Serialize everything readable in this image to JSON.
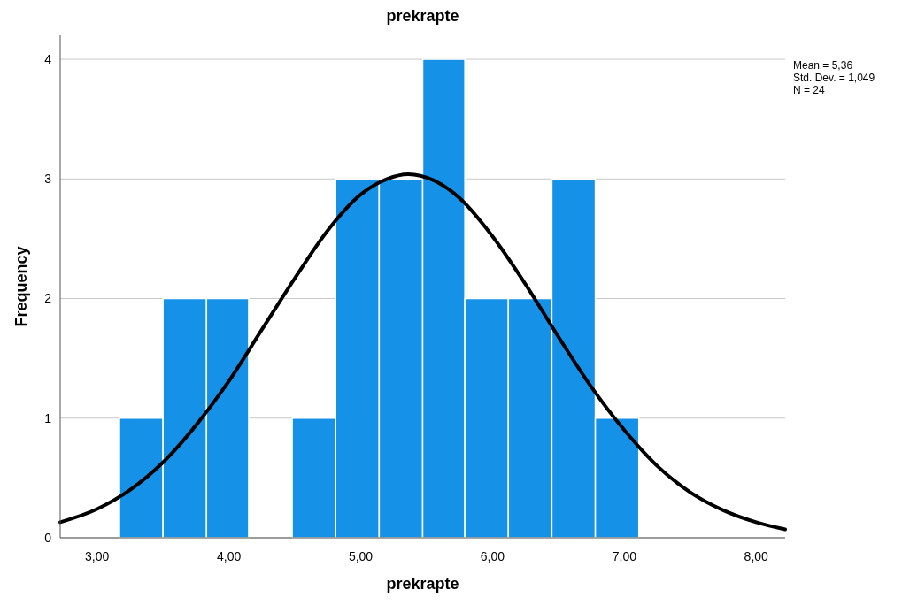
{
  "chart_data": {
    "type": "histogram",
    "title": "prekrapte",
    "xlabel": "prekrapte",
    "ylabel": "Frequency",
    "annotations": [
      "Mean = 5,36",
      "Std. Dev. = 1,049",
      "N = 24"
    ],
    "xlim": [
      2.72,
      8.22
    ],
    "ylim": [
      0,
      4.2
    ],
    "xticks": [
      {
        "value": 3,
        "label": "3,00"
      },
      {
        "value": 4,
        "label": "4,00"
      },
      {
        "value": 5,
        "label": "5,00"
      },
      {
        "value": 6,
        "label": "6,00"
      },
      {
        "value": 7,
        "label": "7,00"
      },
      {
        "value": 8,
        "label": "8,00"
      }
    ],
    "yticks": [
      0,
      1,
      2,
      3,
      4
    ],
    "grid": "y",
    "color": "#1591e8",
    "bins": [
      3.17,
      3.5,
      3.83,
      4.15,
      4.48,
      4.81,
      5.14,
      5.47,
      5.79,
      6.12,
      6.45,
      6.78,
      7.11
    ],
    "values": [
      1,
      2,
      2,
      0,
      1,
      3,
      3,
      4,
      2,
      2,
      3,
      1
    ],
    "series": [
      {
        "type": "line",
        "color": "#000000",
        "x": [
          2.72,
          3.0,
          3.25,
          3.5,
          3.75,
          4.0,
          4.25,
          4.5,
          4.75,
          5.0,
          5.2,
          5.36,
          5.55,
          5.75,
          6.0,
          6.25,
          6.5,
          6.75,
          7.0,
          7.25,
          7.5,
          7.75,
          8.0,
          8.22
        ],
        "values": [
          0.13,
          0.24,
          0.4,
          0.63,
          0.94,
          1.31,
          1.74,
          2.17,
          2.57,
          2.87,
          3.0,
          3.04,
          2.99,
          2.84,
          2.52,
          2.12,
          1.68,
          1.26,
          0.9,
          0.6,
          0.38,
          0.23,
          0.13,
          0.07
        ]
      }
    ]
  }
}
